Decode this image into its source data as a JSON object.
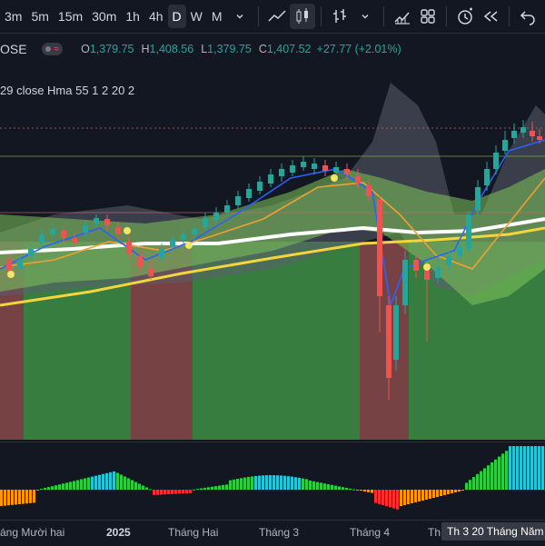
{
  "toolbar": {
    "timeframes": [
      "3m",
      "5m",
      "15m",
      "30m",
      "1h",
      "4h",
      "D",
      "W",
      "M"
    ],
    "active_timeframe": "D"
  },
  "symbol": {
    "name": "OSE",
    "open_label": "O",
    "open": "1,379.75",
    "high_label": "H",
    "high": "1,408.56",
    "low_label": "L",
    "low": "1,379.75",
    "close_label": "C",
    "close": "1,407.52",
    "change": "+27.77 (+2.01%)"
  },
  "indicator": {
    "label": "29 close Hma 55 1 2 20 2"
  },
  "xaxis": {
    "labels": [
      "áng Mười hai",
      "2025",
      "Tháng Hai",
      "Tháng 3",
      "Tháng 4",
      "Th"
    ],
    "cursor_label": "Th 3 20 Tháng Năm '2"
  },
  "colors": {
    "background": "#131722",
    "up": "#26a69a",
    "down": "#ef5350",
    "green_zone": "#3f8f45",
    "red_zone": "#8a4a4a",
    "ema_white": "#ffffff",
    "ema_yellow": "#f5d53d",
    "ema_orange": "#f0a030",
    "ema_blue": "#2962ff"
  }
}
